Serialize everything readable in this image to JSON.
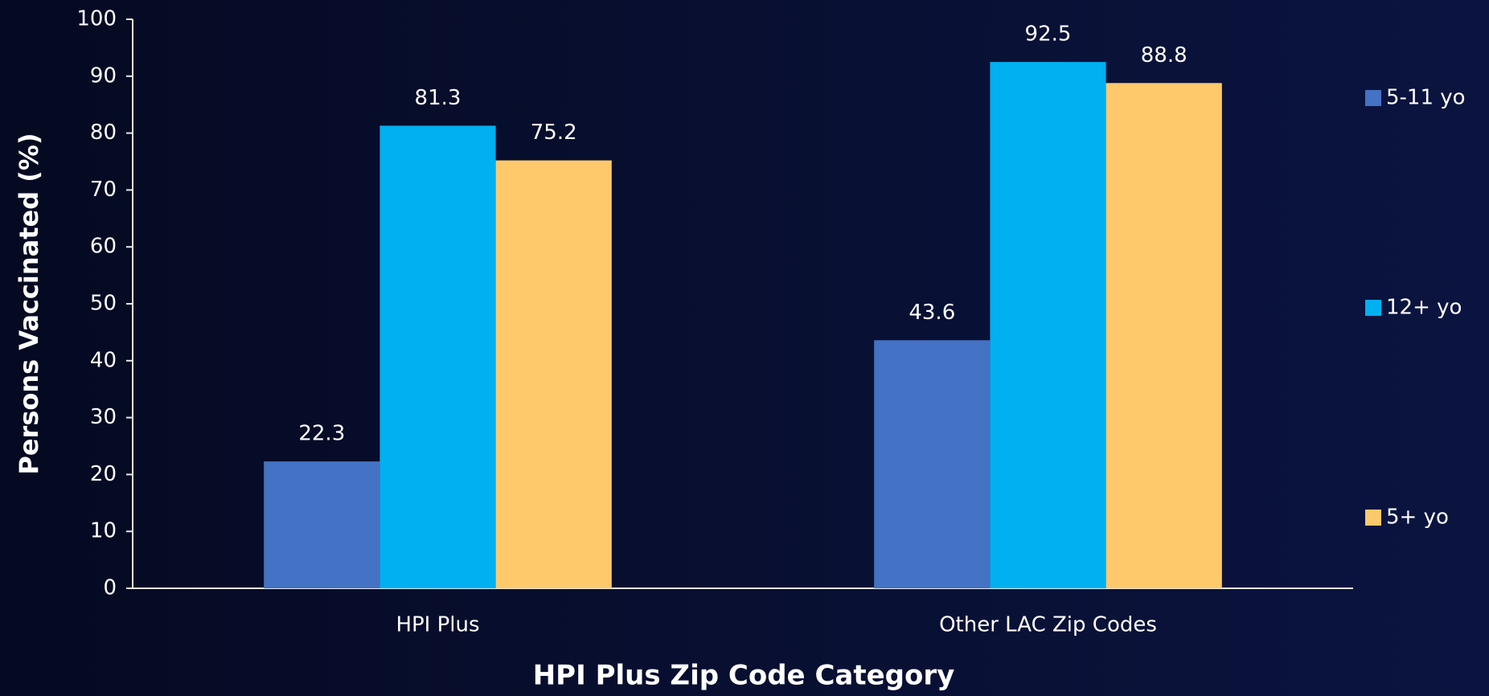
{
  "chart_data": {
    "type": "bar",
    "categories": [
      "HPI Plus",
      "Other LAC Zip Codes"
    ],
    "series": [
      {
        "name": "5-11 yo",
        "color": "#4472c4",
        "values": [
          22.3,
          43.6
        ]
      },
      {
        "name": "12+ yo",
        "color": "#00b0f0",
        "values": [
          81.3,
          92.5
        ]
      },
      {
        "name": "5+ yo",
        "color": "#fdc96b",
        "values": [
          75.2,
          88.8
        ]
      }
    ],
    "xlabel": "HPI Plus Zip Code Category",
    "ylabel": "Persons Vaccinated (%)",
    "ylim": [
      0,
      100
    ],
    "yticks": [
      0,
      10,
      20,
      30,
      40,
      50,
      60,
      70,
      80,
      90,
      100
    ],
    "grid": false,
    "legend": "right",
    "data_labels": true
  }
}
